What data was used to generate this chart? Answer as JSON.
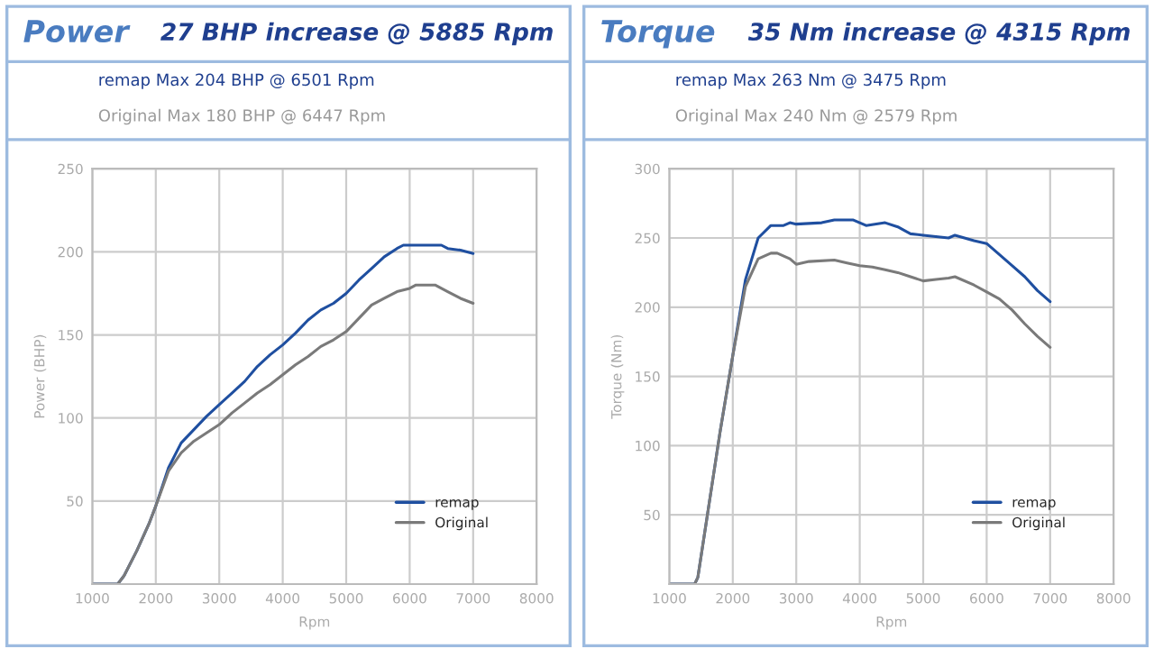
{
  "chart_data": [
    {
      "type": "line",
      "title": "Power",
      "subtitle": "27 BHP increase @ 5885 Rpm",
      "annotations": [
        "remap Max 204 BHP @ 6501 Rpm",
        "Original Max 180 BHP @ 6447 Rpm"
      ],
      "xlabel": "Rpm",
      "ylabel": "Power (BHP)",
      "xlim": [
        1000,
        8000
      ],
      "xticks": [
        1000,
        2000,
        3000,
        4000,
        5000,
        6000,
        7000,
        8000
      ],
      "ylim": [
        0,
        250
      ],
      "yticks": [
        {
          "value": 0,
          "label": null
        },
        50,
        100,
        150,
        200,
        250
      ],
      "grid": true,
      "legend": "bottom right",
      "series": [
        {
          "name": "remap",
          "color": "#1f4fa0",
          "x": [
            1000,
            1400,
            1500,
            1700,
            1900,
            2000,
            2200,
            2400,
            2600,
            2800,
            3000,
            3200,
            3400,
            3600,
            3800,
            4000,
            4200,
            4400,
            4600,
            4800,
            5000,
            5200,
            5400,
            5600,
            5800,
            5900,
            6500,
            6600,
            6800,
            7000
          ],
          "values": [
            0,
            0,
            5,
            20,
            37,
            47,
            70,
            85,
            93,
            101,
            108,
            115,
            122,
            131,
            138,
            144,
            151,
            159,
            165,
            169,
            175,
            183,
            190,
            197,
            202,
            204,
            204,
            202,
            201,
            199
          ]
        },
        {
          "name": "Original",
          "color": "#7a7a7a",
          "x": [
            1000,
            1400,
            1500,
            1700,
            1900,
            2000,
            2200,
            2400,
            2600,
            2800,
            3000,
            3200,
            3400,
            3600,
            3800,
            4000,
            4200,
            4400,
            4600,
            4800,
            5000,
            5200,
            5400,
            5600,
            5800,
            6000,
            6100,
            6400,
            6600,
            6800,
            7000
          ],
          "values": [
            0,
            0,
            5,
            20,
            37,
            47,
            68,
            79,
            86,
            91,
            96,
            103,
            109,
            115,
            120,
            126,
            132,
            137,
            143,
            147,
            152,
            160,
            168,
            172,
            176,
            178,
            180,
            180,
            176,
            172,
            169
          ]
        }
      ]
    },
    {
      "type": "line",
      "title": "Torque",
      "subtitle": "35 Nm increase @ 4315 Rpm",
      "annotations": [
        "remap Max 263 Nm @ 3475 Rpm",
        "Original Max 240 Nm @ 2579 Rpm"
      ],
      "xlabel": "Rpm",
      "ylabel": "Torque (Nm)",
      "xlim": [
        1000,
        8000
      ],
      "xticks": [
        1000,
        2000,
        3000,
        4000,
        5000,
        6000,
        7000,
        8000
      ],
      "ylim": [
        0,
        300
      ],
      "yticks": [
        {
          "value": 0,
          "label": null
        },
        50,
        100,
        150,
        200,
        250,
        300
      ],
      "grid": true,
      "legend": "bottom right",
      "series": [
        {
          "name": "remap",
          "color": "#1f4fa0",
          "x": [
            1000,
            1400,
            1450,
            1600,
            1800,
            2000,
            2200,
            2400,
            2600,
            2800,
            2900,
            3000,
            3400,
            3600,
            3900,
            4100,
            4400,
            4600,
            4800,
            5000,
            5200,
            5400,
            5500,
            5800,
            6000,
            6200,
            6400,
            6600,
            6800,
            7000
          ],
          "values": [
            0,
            0,
            5,
            50,
            110,
            165,
            220,
            250,
            259,
            259,
            261,
            260,
            261,
            263,
            263,
            259,
            261,
            258,
            253,
            252,
            251,
            250,
            252,
            248,
            246,
            238,
            230,
            222,
            212,
            204
          ]
        },
        {
          "name": "Original",
          "color": "#7a7a7a",
          "x": [
            1000,
            1400,
            1450,
            1600,
            1800,
            2000,
            2200,
            2400,
            2600,
            2700,
            2900,
            3000,
            3200,
            3600,
            3800,
            4000,
            4200,
            4400,
            4600,
            4800,
            5000,
            5200,
            5400,
            5500,
            5800,
            6000,
            6200,
            6400,
            6600,
            6800,
            7000
          ],
          "values": [
            0,
            0,
            5,
            50,
            110,
            165,
            215,
            235,
            239,
            239,
            235,
            231,
            233,
            234,
            232,
            230,
            229,
            227,
            225,
            222,
            219,
            220,
            221,
            222,
            216,
            211,
            206,
            198,
            188,
            179,
            171
          ]
        }
      ]
    }
  ]
}
